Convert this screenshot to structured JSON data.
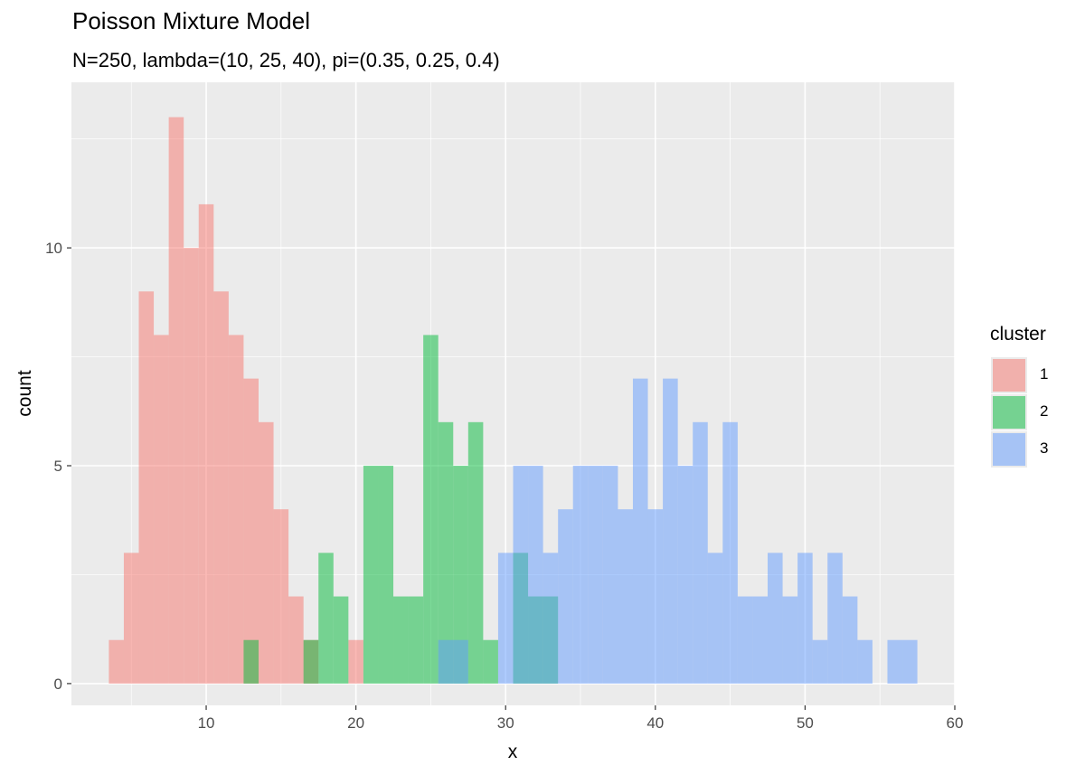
{
  "chart_data": {
    "type": "bar",
    "title": "Poisson Mixture Model",
    "subtitle": "N=250, lambda=(10, 25, 40), pi=(0.35, 0.25, 0.4)",
    "xlabel": "x",
    "ylabel": "count",
    "xlim": [
      1,
      60
    ],
    "ylim": [
      -0.5,
      13.8
    ],
    "x_ticks": [
      10,
      20,
      30,
      40,
      50,
      60
    ],
    "y_ticks": [
      0,
      5,
      10
    ],
    "x_tick_labels": [
      "10",
      "20",
      "30",
      "40",
      "50",
      "60"
    ],
    "y_tick_labels": [
      "0",
      "5",
      "10"
    ],
    "grid": true,
    "legend_title": "cluster",
    "legend_position": "right",
    "bin_width": 1,
    "series": [
      {
        "name": "1",
        "color": "#F8766D",
        "x": [
          4,
          5,
          6,
          7,
          8,
          9,
          10,
          11,
          12,
          13,
          14,
          15,
          16,
          17,
          20
        ],
        "values": [
          1,
          3,
          9,
          8,
          13,
          10,
          11,
          9,
          8,
          7,
          6,
          4,
          2,
          1,
          1
        ]
      },
      {
        "name": "2",
        "color": "#00BA38",
        "x": [
          13,
          17,
          18,
          19,
          21,
          22,
          23,
          24,
          25,
          26,
          27,
          28,
          29,
          31,
          32,
          33
        ],
        "values": [
          1,
          1,
          3,
          2,
          5,
          5,
          2,
          2,
          8,
          6,
          5,
          6,
          1,
          3,
          2,
          2
        ]
      },
      {
        "name": "3",
        "color": "#619CFF",
        "x": [
          26,
          27,
          30,
          31,
          32,
          33,
          34,
          35,
          36,
          37,
          38,
          39,
          40,
          41,
          42,
          43,
          44,
          45,
          46,
          47,
          48,
          49,
          50,
          51,
          52,
          53,
          54,
          56,
          57
        ],
        "values": [
          1,
          1,
          3,
          5,
          5,
          3,
          4,
          5,
          5,
          5,
          4,
          7,
          4,
          7,
          5,
          6,
          3,
          6,
          2,
          2,
          3,
          2,
          3,
          1,
          3,
          2,
          1,
          1,
          1
        ]
      }
    ]
  }
}
